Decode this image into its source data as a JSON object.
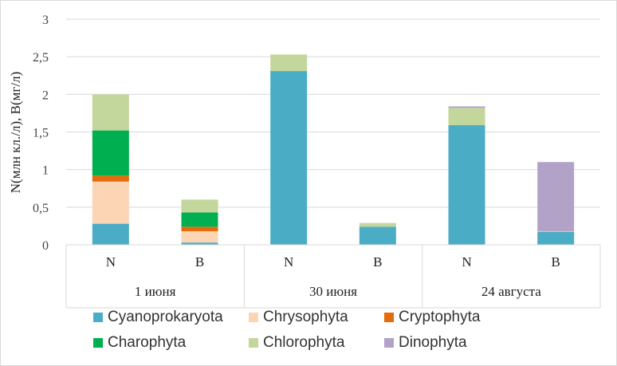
{
  "chart_data": {
    "type": "bar",
    "stacked": true,
    "ylabel": "N(млн кл./л),  B(мг/л)",
    "ylim": [
      0,
      3
    ],
    "yticks": [
      "0",
      "0,5",
      "1",
      "1,5",
      "2",
      "2,5",
      "3"
    ],
    "ytick_values": [
      0,
      0.5,
      1,
      1.5,
      2,
      2.5,
      3
    ],
    "grid": true,
    "legend_position": "bottom",
    "groups": [
      "1 июня",
      "30 июня",
      "24 августа"
    ],
    "categories": [
      "N",
      "B",
      "N",
      "B",
      "N",
      "B"
    ],
    "series": [
      {
        "name": "Cyanoprokaryota",
        "color": "#4bacc6",
        "values": [
          0.28,
          0.03,
          2.31,
          0.24,
          1.59,
          0.17
        ]
      },
      {
        "name": "Chrysophyta",
        "color": "#fcd5b5",
        "values": [
          0.56,
          0.15,
          0,
          0,
          0,
          0
        ]
      },
      {
        "name": "Cryptophyta",
        "color": "#e46c0a",
        "values": [
          0.08,
          0.06,
          0,
          0,
          0,
          0
        ]
      },
      {
        "name": "Charophyta",
        "color": "#00b050",
        "values": [
          0.6,
          0.19,
          0,
          0,
          0,
          0
        ]
      },
      {
        "name": "Chlorophyta",
        "color": "#c3d69b",
        "values": [
          0.48,
          0.17,
          0.22,
          0.05,
          0.23,
          0.01
        ]
      },
      {
        "name": "Dinophyta",
        "color": "#b3a2c7",
        "values": [
          0,
          0,
          0,
          0,
          0.02,
          0.92
        ]
      }
    ]
  }
}
